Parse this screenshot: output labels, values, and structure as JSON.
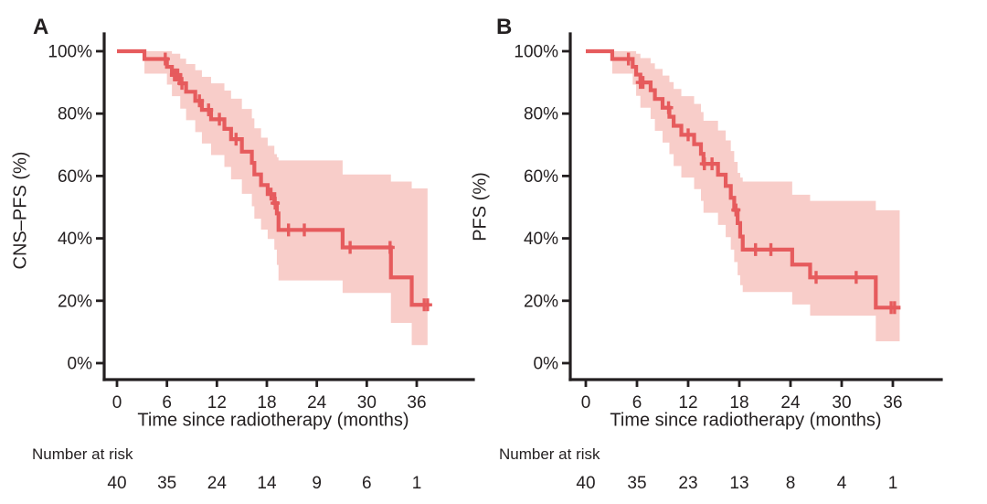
{
  "figure": {
    "colors": {
      "curve": "#e65b5d",
      "confidence_band": "#f8cdc9",
      "axis": "#231f20",
      "text": "#231f20",
      "background": "#ffffff"
    }
  },
  "chart_data": [
    {
      "type": "line",
      "subtype": "kaplan_meier_step_with_confidence_band",
      "panel_label": "A",
      "title": "",
      "xlabel": "Time since radiotherapy (months)",
      "ylabel": "CNS–PFS (%)",
      "xlim": [
        0,
        42
      ],
      "ylim": [
        0,
        100
      ],
      "grid": false,
      "legend": false,
      "xticks": [
        0,
        6,
        12,
        18,
        24,
        30,
        36
      ],
      "xtick_labels": [
        "0",
        "6",
        "12",
        "18",
        "24",
        "30",
        "36"
      ],
      "yticks": [
        0,
        20,
        40,
        60,
        80,
        100
      ],
      "ytick_labels": [
        "0%",
        "20%",
        "40%",
        "60%",
        "80%",
        "100%"
      ],
      "step_columns": [
        "time_months",
        "survival_pct",
        "ci_upper_pct",
        "ci_lower_pct"
      ],
      "steps": [
        [
          0.0,
          100.0,
          100.0,
          100.0
        ],
        [
          3.3,
          97.5,
          100.0,
          92.8
        ],
        [
          6.0,
          95.0,
          100.0,
          89.3
        ],
        [
          6.6,
          92.4,
          99.2,
          85.6
        ],
        [
          7.6,
          89.7,
          97.6,
          81.6
        ],
        [
          8.3,
          87.0,
          95.9,
          77.9
        ],
        [
          9.4,
          84.1,
          93.9,
          74.1
        ],
        [
          10.2,
          81.2,
          91.8,
          70.4
        ],
        [
          11.3,
          78.2,
          89.7,
          66.7
        ],
        [
          12.9,
          75.1,
          87.4,
          62.9
        ],
        [
          13.7,
          71.8,
          84.8,
          58.9
        ],
        [
          15.0,
          67.8,
          81.5,
          54.3
        ],
        [
          16.2,
          64.2,
          78.5,
          50.3
        ],
        [
          16.5,
          60.5,
          75.3,
          46.3
        ],
        [
          17.3,
          57.1,
          72.3,
          42.8
        ],
        [
          18.1,
          54.2,
          69.7,
          39.8
        ],
        [
          18.9,
          51.3,
          67.0,
          36.4
        ],
        [
          19.2,
          48.0,
          66.0,
          31.5
        ],
        [
          19.4,
          42.7,
          65.0,
          26.5
        ],
        [
          27.1,
          37.1,
          60.5,
          22.5
        ],
        [
          32.9,
          27.5,
          58.2,
          12.9
        ],
        [
          35.4,
          18.7,
          56.0,
          5.8
        ]
      ],
      "curve_end_month": 37.5,
      "band_end_month": 37.3,
      "censor_columns": [
        "time_months",
        "survival_pct"
      ],
      "censor_marks": [
        [
          5.8,
          97.5
        ],
        [
          6.9,
          92.4
        ],
        [
          7.1,
          92.4
        ],
        [
          7.3,
          92.4
        ],
        [
          7.8,
          89.7
        ],
        [
          9.9,
          84.1
        ],
        [
          11.0,
          81.2
        ],
        [
          12.3,
          78.2
        ],
        [
          14.3,
          71.8
        ],
        [
          18.5,
          54.2
        ],
        [
          19.0,
          51.3
        ],
        [
          20.6,
          42.7
        ],
        [
          22.5,
          42.7
        ],
        [
          28.0,
          37.1
        ],
        [
          32.8,
          37.1
        ],
        [
          36.9,
          18.7
        ],
        [
          37.3,
          18.7
        ]
      ],
      "number_at_risk": {
        "label": "Number at risk",
        "times": [
          0,
          6,
          12,
          18,
          24,
          30,
          36
        ],
        "counts": [
          40,
          35,
          24,
          14,
          9,
          6,
          1
        ]
      }
    },
    {
      "type": "line",
      "subtype": "kaplan_meier_step_with_confidence_band",
      "panel_label": "B",
      "title": "",
      "xlabel": "Time since radiotherapy (months)",
      "ylabel": "PFS (%)",
      "xlim": [
        0,
        42
      ],
      "ylim": [
        0,
        100
      ],
      "grid": false,
      "legend": false,
      "xticks": [
        0,
        6,
        12,
        18,
        24,
        30,
        36
      ],
      "xtick_labels": [
        "0",
        "6",
        "12",
        "18",
        "24",
        "30",
        "36"
      ],
      "yticks": [
        0,
        20,
        40,
        60,
        80,
        100
      ],
      "ytick_labels": [
        "0%",
        "20%",
        "40%",
        "60%",
        "80%",
        "100%"
      ],
      "step_columns": [
        "time_months",
        "survival_pct",
        "ci_upper_pct",
        "ci_lower_pct"
      ],
      "steps": [
        [
          0.0,
          100.0,
          100.0,
          100.0
        ],
        [
          3.1,
          97.5,
          100.0,
          92.8
        ],
        [
          5.5,
          95.0,
          100.0,
          89.3
        ],
        [
          5.9,
          92.5,
          99.2,
          85.7
        ],
        [
          6.4,
          90.0,
          97.8,
          81.9
        ],
        [
          7.6,
          87.5,
          96.1,
          78.3
        ],
        [
          8.1,
          84.7,
          94.3,
          74.5
        ],
        [
          9.0,
          81.9,
          92.2,
          70.7
        ],
        [
          9.8,
          79.0,
          90.1,
          67.0
        ],
        [
          10.3,
          76.1,
          87.9,
          63.2
        ],
        [
          11.2,
          73.2,
          85.6,
          59.5
        ],
        [
          12.7,
          70.2,
          83.1,
          55.8
        ],
        [
          13.5,
          67.1,
          80.5,
          52.0
        ],
        [
          13.8,
          63.9,
          77.7,
          48.2
        ],
        [
          15.5,
          60.4,
          74.6,
          44.3
        ],
        [
          16.4,
          56.8,
          71.4,
          40.4
        ],
        [
          17.0,
          53.0,
          68.0,
          36.4
        ],
        [
          17.4,
          49.1,
          64.5,
          32.4
        ],
        [
          17.8,
          44.9,
          61.0,
          28.2
        ],
        [
          18.1,
          40.6,
          59.5,
          25.0
        ],
        [
          18.4,
          36.4,
          58.2,
          22.8
        ],
        [
          24.2,
          31.6,
          54.0,
          18.8
        ],
        [
          26.3,
          27.5,
          52.0,
          15.2
        ],
        [
          34.0,
          17.8,
          49.0,
          7.0
        ]
      ],
      "curve_end_month": 36.9,
      "band_end_month": 36.8,
      "censor_columns": [
        "time_months",
        "survival_pct"
      ],
      "censor_marks": [
        [
          5.0,
          97.5
        ],
        [
          6.4,
          90.0
        ],
        [
          6.7,
          90.0
        ],
        [
          9.7,
          81.9
        ],
        [
          12.0,
          73.2
        ],
        [
          13.9,
          63.9
        ],
        [
          14.8,
          63.9
        ],
        [
          17.6,
          49.1
        ],
        [
          19.9,
          36.4
        ],
        [
          21.7,
          36.4
        ],
        [
          27.0,
          27.5
        ],
        [
          31.7,
          27.5
        ],
        [
          35.8,
          17.8
        ],
        [
          36.2,
          17.8
        ]
      ],
      "number_at_risk": {
        "label": "Number at risk",
        "times": [
          0,
          6,
          12,
          18,
          24,
          30,
          36
        ],
        "counts": [
          40,
          35,
          23,
          13,
          8,
          4,
          1
        ]
      }
    }
  ]
}
